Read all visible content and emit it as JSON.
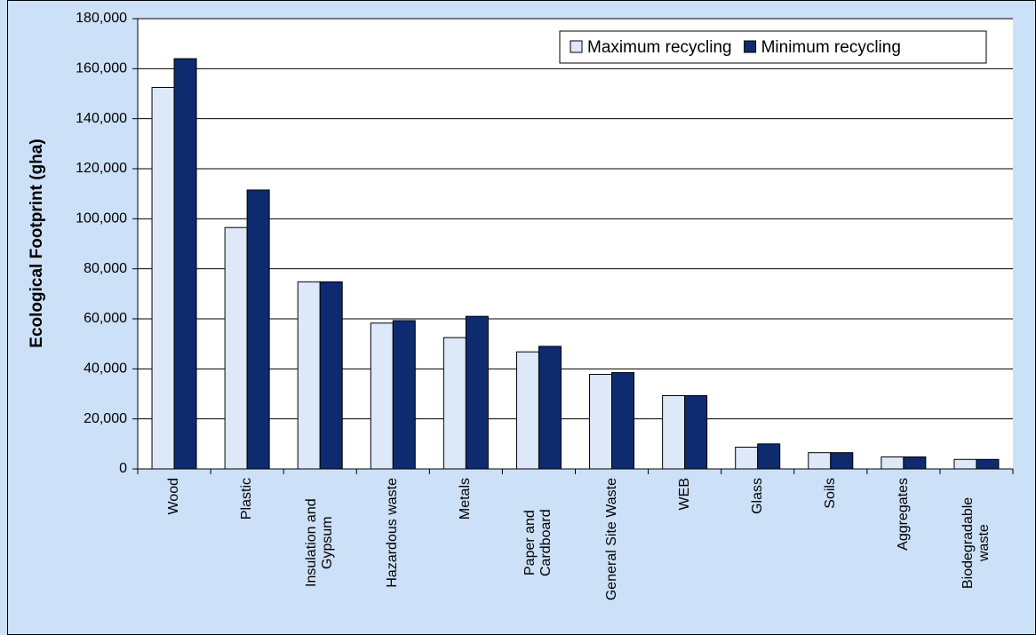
{
  "chart_data": {
    "type": "bar",
    "y_label": "Ecological Footprint (gha)",
    "categories": [
      "Wood",
      "Plastic",
      "Insulation and Gypsum",
      "Hazardous waste",
      "Metals",
      "Paper and Cardboard",
      "General Site Waste",
      "WEB",
      "Glass",
      "Soils",
      "Aggregates",
      "Biodegradable waste"
    ],
    "series": [
      {
        "name": "Maximum recycling",
        "color": "#dde8f8",
        "values": [
          152500,
          96500,
          74800,
          58300,
          52500,
          46800,
          37800,
          29300,
          8700,
          6500,
          4800,
          3800
        ]
      },
      {
        "name": "Minimum recycling",
        "color": "#0d2b6e",
        "values": [
          164000,
          111500,
          74800,
          59300,
          61000,
          49000,
          38500,
          29300,
          10000,
          6500,
          4800,
          3800
        ]
      }
    ],
    "ylim": [
      0,
      180000
    ],
    "yticks": [
      0,
      {
        "value": 20000,
        "label": "20,000"
      },
      {
        "value": 40000,
        "label": "40,000"
      },
      {
        "value": 60000,
        "label": "60,000"
      },
      {
        "value": 80000,
        "label": "80,000"
      },
      {
        "value": 100000,
        "label": "100,000"
      },
      {
        "value": 120000,
        "label": "120,000"
      },
      {
        "value": 140000,
        "label": "140,000"
      },
      {
        "value": 160000,
        "label": "160,000"
      },
      {
        "value": 180000,
        "label": "180,000"
      }
    ],
    "grid": true,
    "legend": "top-right"
  }
}
